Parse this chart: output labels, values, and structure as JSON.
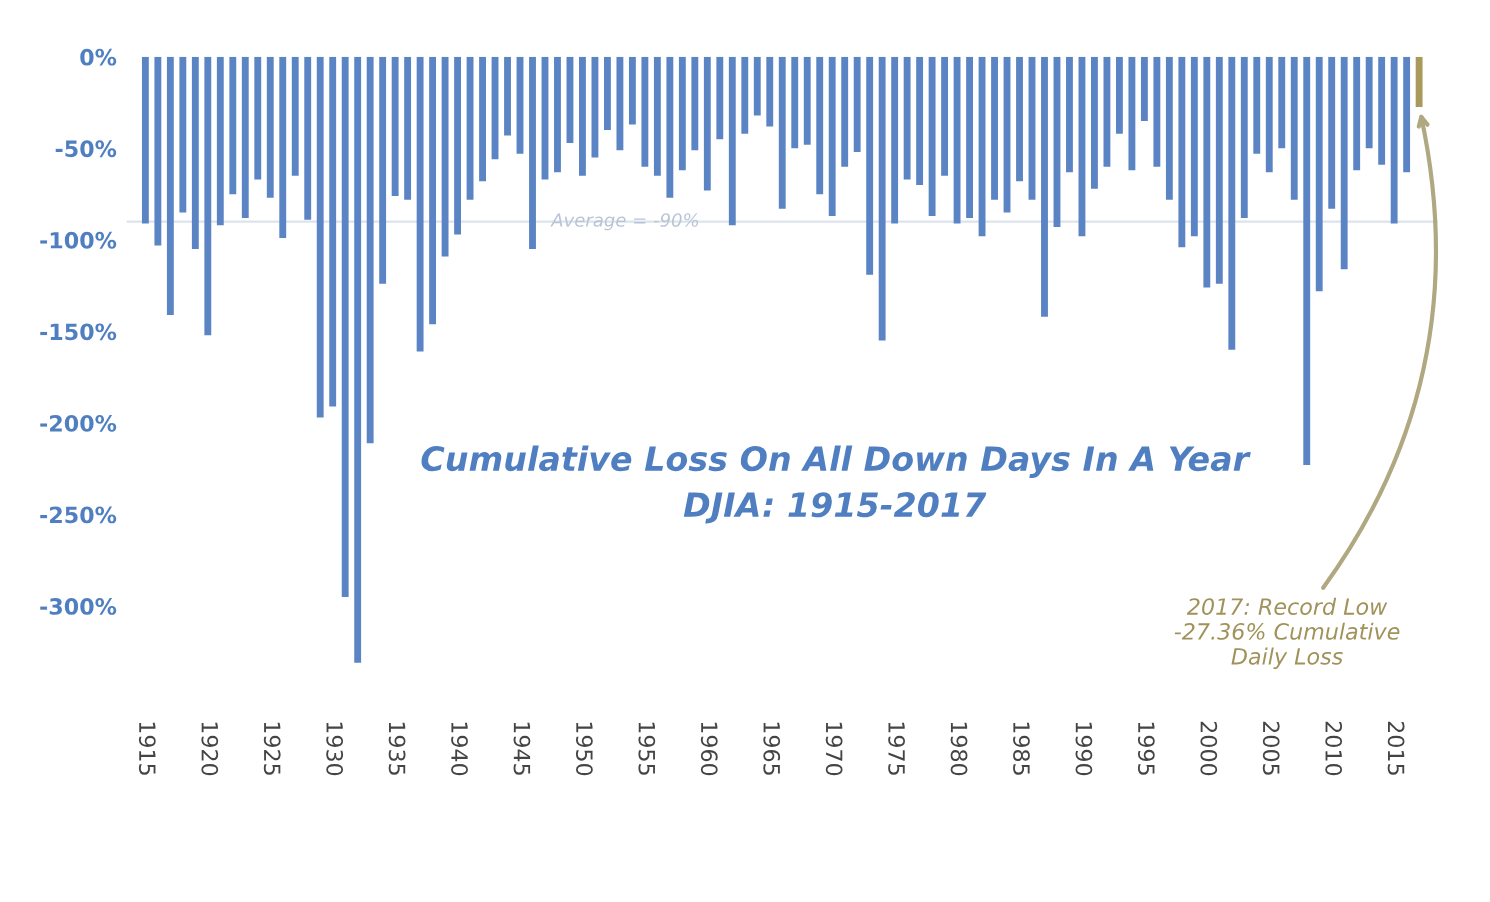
{
  "chart_data": {
    "type": "bar",
    "title": "Cumulative Loss On All Down Days In A Year",
    "subtitle": "DJIA: 1915-2017",
    "x": [
      1915,
      1916,
      1917,
      1918,
      1919,
      1920,
      1921,
      1922,
      1923,
      1924,
      1925,
      1926,
      1927,
      1928,
      1929,
      1930,
      1931,
      1932,
      1933,
      1934,
      1935,
      1936,
      1937,
      1938,
      1939,
      1940,
      1941,
      1942,
      1943,
      1944,
      1945,
      1946,
      1947,
      1948,
      1949,
      1950,
      1951,
      1952,
      1953,
      1954,
      1955,
      1956,
      1957,
      1958,
      1959,
      1960,
      1961,
      1962,
      1963,
      1964,
      1965,
      1966,
      1967,
      1968,
      1969,
      1970,
      1971,
      1972,
      1973,
      1974,
      1975,
      1976,
      1977,
      1978,
      1979,
      1980,
      1981,
      1982,
      1983,
      1984,
      1985,
      1986,
      1987,
      1988,
      1989,
      1990,
      1991,
      1992,
      1993,
      1994,
      1995,
      1996,
      1997,
      1998,
      1999,
      2000,
      2001,
      2002,
      2003,
      2004,
      2005,
      2006,
      2007,
      2008,
      2009,
      2010,
      2011,
      2012,
      2013,
      2014,
      2015,
      2016,
      2017
    ],
    "values": [
      -91,
      -103,
      -141,
      -85,
      -105,
      -152,
      -92,
      -75,
      -88,
      -67,
      -77,
      -99,
      -65,
      -89,
      -197,
      -191,
      -295,
      -331,
      -211,
      -124,
      -76,
      -78,
      -161,
      -146,
      -109,
      -97,
      -78,
      -68,
      -56,
      -43,
      -53,
      -105,
      -67,
      -63,
      -47,
      -65,
      -55,
      -40,
      -51,
      -37,
      -60,
      -65,
      -77,
      -62,
      -51,
      -73,
      -45,
      -92,
      -42,
      -32,
      -38,
      -83,
      -50,
      -48,
      -75,
      -87,
      -60,
      -52,
      -119,
      -155,
      -91,
      -67,
      -70,
      -87,
      -65,
      -91,
      -88,
      -98,
      -78,
      -85,
      -68,
      -78,
      -142,
      -93,
      -63,
      -98,
      -72,
      -60,
      -42,
      -62,
      -35,
      -60,
      -78,
      -104,
      -98,
      -126,
      -124,
      -160,
      -88,
      -53,
      -63,
      -50,
      -78,
      -223,
      -128,
      -83,
      -116,
      -62,
      -50,
      -59,
      -91,
      -63,
      -27.36
    ],
    "colors": [
      "#5b84c4",
      "#5b84c4",
      "#5b84c4",
      "#5b84c4",
      "#5b84c4",
      "#5b84c4",
      "#5b84c4",
      "#5b84c4",
      "#5b84c4",
      "#5b84c4",
      "#5b84c4",
      "#5b84c4",
      "#5b84c4",
      "#5b84c4",
      "#5b84c4",
      "#5b84c4",
      "#5b84c4",
      "#5b84c4",
      "#5b84c4",
      "#5b84c4",
      "#5b84c4",
      "#5b84c4",
      "#5b84c4",
      "#5b84c4",
      "#5b84c4",
      "#5b84c4",
      "#5b84c4",
      "#5b84c4",
      "#5b84c4",
      "#5b84c4",
      "#5b84c4",
      "#5b84c4",
      "#5b84c4",
      "#5b84c4",
      "#5b84c4",
      "#5b84c4",
      "#5b84c4",
      "#5b84c4",
      "#5b84c4",
      "#5b84c4",
      "#5b84c4",
      "#5b84c4",
      "#5b84c4",
      "#5b84c4",
      "#5b84c4",
      "#5b84c4",
      "#5b84c4",
      "#5b84c4",
      "#5b84c4",
      "#5b84c4",
      "#5b84c4",
      "#5b84c4",
      "#5b84c4",
      "#5b84c4",
      "#5b84c4",
      "#5b84c4",
      "#5b84c4",
      "#5b84c4",
      "#5b84c4",
      "#5b84c4",
      "#5b84c4",
      "#5b84c4",
      "#5b84c4",
      "#5b84c4",
      "#5b84c4",
      "#5b84c4",
      "#5b84c4",
      "#5b84c4",
      "#5b84c4",
      "#5b84c4",
      "#5b84c4",
      "#5b84c4",
      "#5b84c4",
      "#5b84c4",
      "#5b84c4",
      "#5b84c4",
      "#5b84c4",
      "#5b84c4",
      "#5b84c4",
      "#5b84c4",
      "#5b84c4",
      "#5b84c4",
      "#5b84c4",
      "#5b84c4",
      "#5b84c4",
      "#5b84c4",
      "#5b84c4",
      "#5b84c4",
      "#5b84c4",
      "#5b84c4",
      "#5b84c4",
      "#5b84c4",
      "#5b84c4",
      "#5b84c4",
      "#5b84c4",
      "#5b84c4",
      "#5b84c4",
      "#5b84c4",
      "#5b84c4",
      "#5b84c4",
      "#5b84c4",
      "#5b84c4",
      "#a89a5a"
    ],
    "xlim": [
      1913.5,
      2018.5
    ],
    "xticks": [
      1915,
      1920,
      1925,
      1930,
      1935,
      1940,
      1945,
      1950,
      1955,
      1960,
      1965,
      1970,
      1975,
      1980,
      1985,
      1990,
      1995,
      2000,
      2005,
      2010,
      2015
    ],
    "ylim": [
      -335,
      0
    ],
    "yticks": [
      {
        "value": 0,
        "label": "0%"
      },
      {
        "value": -50,
        "label": "-50%"
      },
      {
        "value": -100,
        "label": "-100%"
      },
      {
        "value": -150,
        "label": "-150%"
      },
      {
        "value": -200,
        "label": "-200%"
      },
      {
        "value": -250,
        "label": "-250%"
      },
      {
        "value": -300,
        "label": "-300%"
      }
    ],
    "ref_lines": [
      {
        "axis": "y",
        "value": -90,
        "label": "Average = -90%",
        "color": "#dde3ec"
      }
    ],
    "annotations": [
      {
        "text": "2017: Record Low\n-27.36% Cumulative\nDaily Loss",
        "x": 2017,
        "y": -27.36
      }
    ],
    "grid": false,
    "legend": false
  }
}
